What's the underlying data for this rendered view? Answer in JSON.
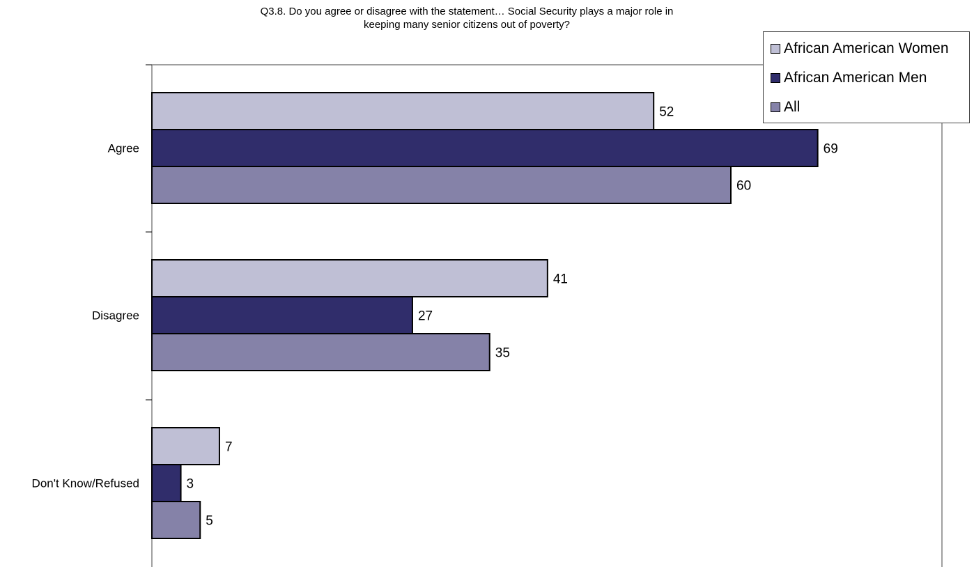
{
  "chart_data": {
    "type": "bar",
    "orientation": "horizontal",
    "title_lines": [
      "Q3.8. Do you agree or disagree with the statement… Social Security plays a major role in",
      "keeping many senior citizens out of poverty?"
    ],
    "categories": [
      "Agree",
      "Disagree",
      "Don't Know/Refused"
    ],
    "series": [
      {
        "name": "African American Women",
        "values": [
          52,
          41,
          7
        ],
        "color": "#bfbfd5"
      },
      {
        "name": "African American Men",
        "values": [
          69,
          27,
          3
        ],
        "color": "#302d6b"
      },
      {
        "name": "All",
        "values": [
          60,
          35,
          5
        ],
        "color": "#8582a8"
      }
    ],
    "xlim": [
      0,
      80
    ],
    "grid": false,
    "legend_position": "top-right",
    "data_labels": true
  }
}
